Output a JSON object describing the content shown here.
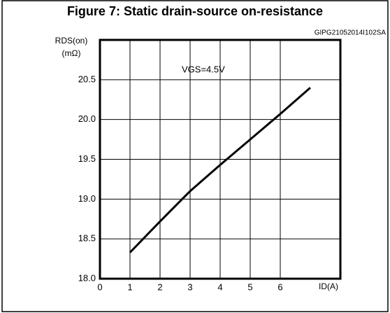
{
  "chart_data": {
    "type": "line",
    "title": "Figure 7: Static drain-source on-resistance",
    "code": "GIPG21052014I102SA",
    "y_label": "RDS(on)",
    "y_unit": "(mΩ)",
    "x_label": "ID(A)",
    "annotation": "VGS=4.5V",
    "x": [
      1,
      2,
      3,
      4,
      5,
      6,
      7
    ],
    "series": [
      {
        "name": "VGS=4.5V",
        "color": "#000000",
        "values": [
          18.33,
          18.72,
          19.1,
          19.43,
          19.75,
          20.07,
          20.4
        ]
      }
    ],
    "xlim": [
      0,
      8
    ],
    "xticks": [
      0,
      1,
      2,
      3,
      4,
      5,
      6
    ],
    "ylim": [
      18,
      21
    ],
    "yticks": [
      {
        "value": 18,
        "label": "18.0"
      },
      {
        "value": 18.5,
        "label": "18.5"
      },
      {
        "value": 19,
        "label": "19.0"
      },
      {
        "value": 19.5,
        "label": "19.5"
      },
      {
        "value": 20,
        "label": "20.0"
      },
      {
        "value": 20.5,
        "label": "20.5"
      }
    ],
    "grid": true
  }
}
